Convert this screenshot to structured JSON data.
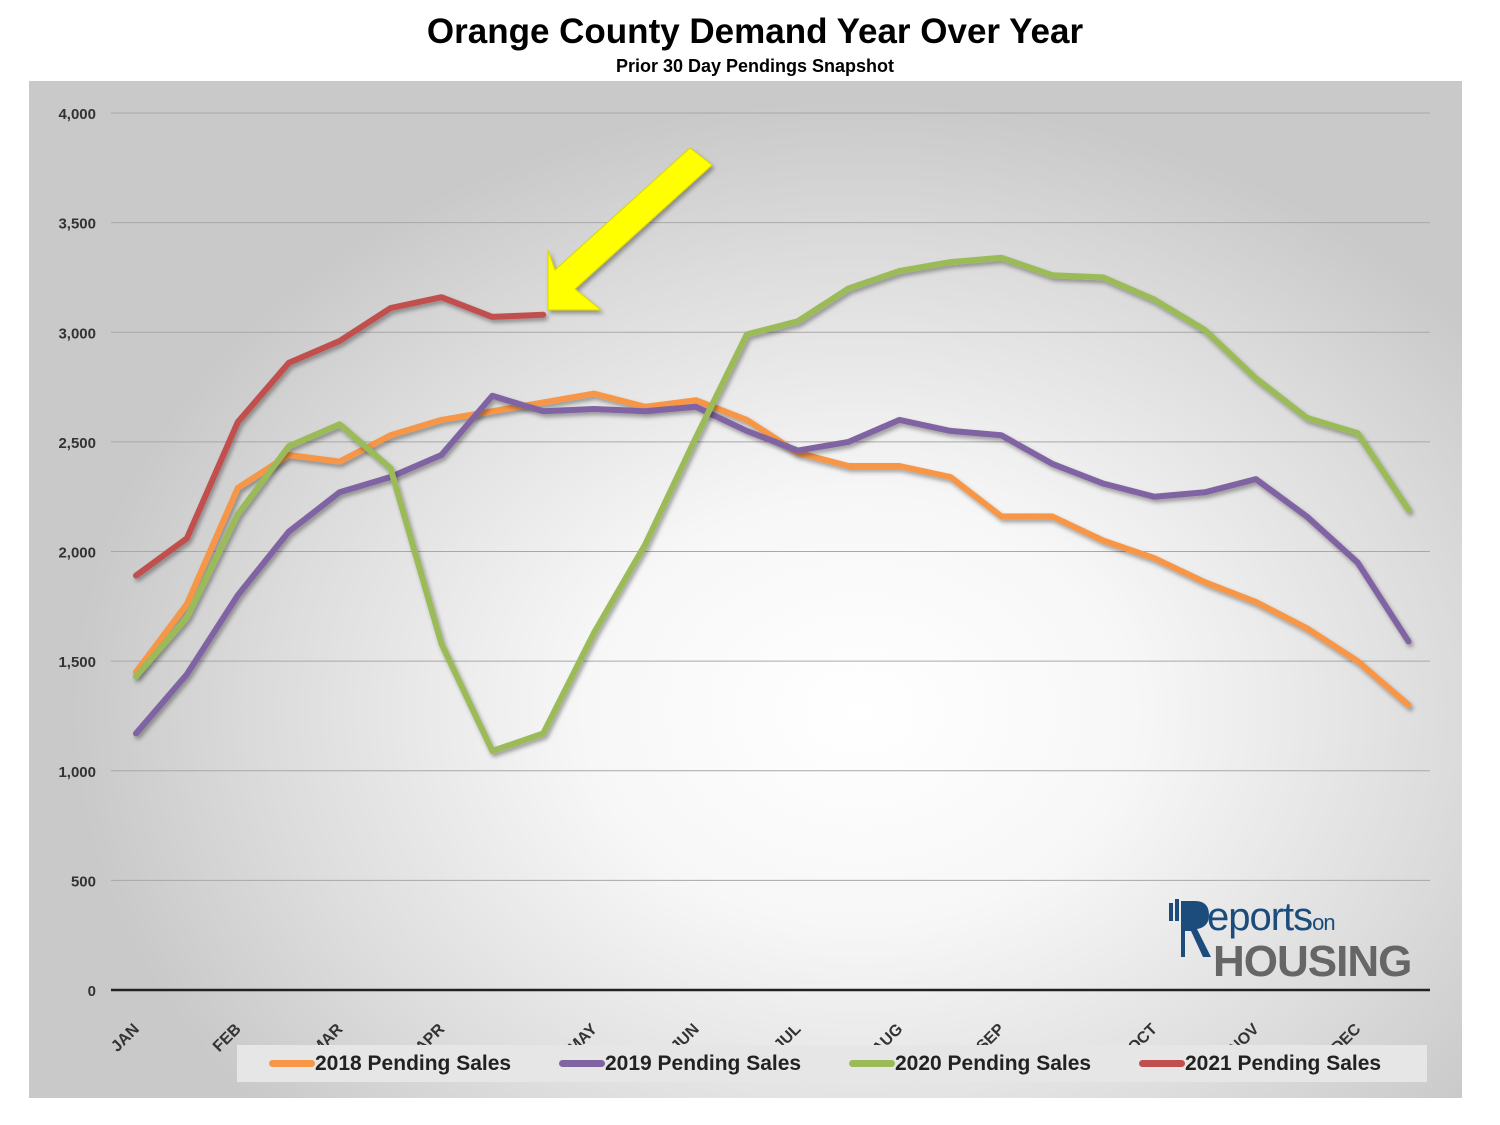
{
  "chart_data": {
    "type": "line",
    "title": "Orange County Demand Year Over Year",
    "subtitle": "Prior 30 Day Pendings Snapshot",
    "xlabel": "",
    "ylabel": "",
    "ylim": [
      0,
      4000
    ],
    "yticks": [
      0,
      500,
      1000,
      1500,
      2000,
      2500,
      3000,
      3500,
      4000
    ],
    "ytick_labels": [
      "0",
      "500",
      "1,000",
      "1,500",
      "2,000",
      "2,500",
      "3,000",
      "3,500",
      "4,000"
    ],
    "x_month_labels": [
      {
        "label": "JAN",
        "x": 0
      },
      {
        "label": "FEB",
        "x": 2
      },
      {
        "label": "MAR",
        "x": 4
      },
      {
        "label": "APR",
        "x": 6
      },
      {
        "label": "MAY",
        "x": 9
      },
      {
        "label": "JUN",
        "x": 11
      },
      {
        "label": "JUL",
        "x": 13
      },
      {
        "label": "AUG",
        "x": 15
      },
      {
        "label": "SEP",
        "x": 17
      },
      {
        "label": "OCT",
        "x": 20
      },
      {
        "label": "NOV",
        "x": 22
      },
      {
        "label": "DEC",
        "x": 24
      }
    ],
    "num_points": 26,
    "grid": true,
    "legend_position": "bottom",
    "series": [
      {
        "name": "2018 Pending Sales",
        "color": "#f79646",
        "values": [
          1450,
          1760,
          2290,
          2440,
          2410,
          2530,
          2600,
          2640,
          2680,
          2720,
          2660,
          2690,
          2600,
          2450,
          2390,
          2390,
          2340,
          2160,
          2160,
          2050,
          1970,
          1860,
          1770,
          1650,
          1500,
          1300
        ]
      },
      {
        "name": "2019 Pending Sales",
        "color": "#8064a2",
        "values": [
          1170,
          1440,
          1800,
          2090,
          2270,
          2340,
          2440,
          2710,
          2640,
          2650,
          2640,
          2660,
          2550,
          2460,
          2500,
          2600,
          2550,
          2530,
          2400,
          2310,
          2250,
          2270,
          2330,
          2160,
          1950,
          1590
        ]
      },
      {
        "name": "2020 Pending Sales",
        "color": "#9bbb59",
        "values": [
          1430,
          1700,
          2170,
          2480,
          2580,
          2380,
          1580,
          1090,
          1170,
          1630,
          2030,
          2520,
          2990,
          3050,
          3200,
          3280,
          3320,
          3340,
          3260,
          3250,
          3150,
          3010,
          2790,
          2610,
          2540,
          2190
        ]
      },
      {
        "name": "2021 Pending Sales",
        "color": "#c0504d",
        "values": [
          1890,
          2060,
          2590,
          2860,
          2960,
          3110,
          3160,
          3070,
          3080
        ]
      }
    ],
    "annotation": {
      "type": "arrow",
      "color": "#ffff00",
      "points_to_series": "2021 Pending Sales"
    }
  },
  "logo": {
    "top_text": "eports",
    "on_text": "on",
    "bottom_text": "HOUSING"
  }
}
